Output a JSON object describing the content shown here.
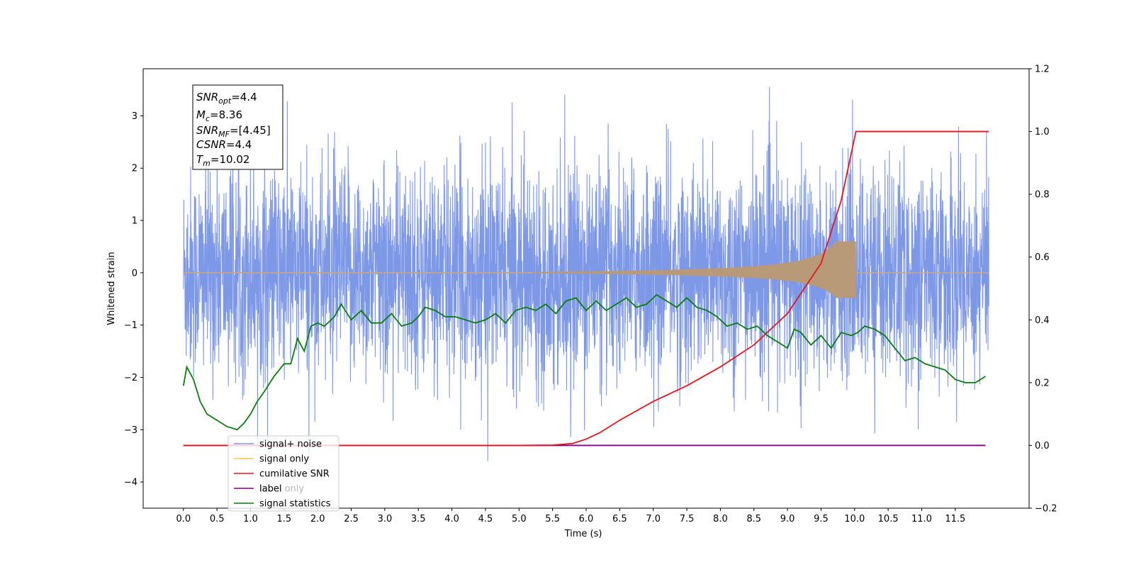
{
  "chart_data": {
    "type": "line",
    "xlabel": "Time (s)",
    "ylabel_left": "Whitened strain",
    "ylabel_right": "",
    "xlim": [
      -0.6,
      12.6
    ],
    "ylim_left": [
      -4.5,
      3.9
    ],
    "ylim_right": [
      -0.2,
      1.2
    ],
    "x_ticks": [
      "0.0",
      "0.5",
      "1.0",
      "1.5",
      "2.0",
      "2.5",
      "3.0",
      "3.5",
      "4.0",
      "4.5",
      "5.0",
      "5.5",
      "6.0",
      "6.5",
      "7.0",
      "7.5",
      "8.0",
      "8.5",
      "9.0",
      "9.5",
      "10.0",
      "10.5",
      "11.0",
      "11.5"
    ],
    "y_ticks_left": [
      "−4",
      "−3",
      "−2",
      "−1",
      "0",
      "1",
      "2",
      "3"
    ],
    "y_ticks_right": [
      "−0.2",
      "0.0",
      "0.2",
      "0.4",
      "0.6",
      "0.8",
      "1.0",
      "1.2"
    ],
    "grid": false,
    "legend_position": "lower-left",
    "annotation": {
      "snr_opt": "=4.4",
      "mc": "=8.36",
      "snr_mf": "=[4.45]",
      "csnr": "=4.4",
      "tm": "=10.02"
    },
    "series": [
      {
        "name": "signal+ noise",
        "axis": "left",
        "color": "#7b96e8",
        "style": "dense noise, approx. standard deviation 1.0, peaks to ±3.5",
        "x_range": [
          0.0,
          12.0
        ],
        "std": 1.0
      },
      {
        "name": "signal only",
        "axis": "left",
        "color": "#ffc04c",
        "style": "chirp, amplitude growing to 0.6 at 10.02 s then zero",
        "x_range": [
          0.0,
          10.02
        ],
        "peak_amplitude": 0.6
      },
      {
        "name": "cumilative SNR",
        "axis": "right",
        "color": "#e8141c",
        "x": [
          0.0,
          5.0,
          5.5,
          5.8,
          6.0,
          6.2,
          6.5,
          7.0,
          7.5,
          8.0,
          8.5,
          9.0,
          9.5,
          9.8,
          10.02,
          12.0
        ],
        "values": [
          0.0,
          0.0,
          0.001,
          0.006,
          0.02,
          0.04,
          0.08,
          0.14,
          0.19,
          0.25,
          0.32,
          0.42,
          0.58,
          0.78,
          1.0,
          1.0
        ]
      },
      {
        "name": "label",
        "axis": "right",
        "color": "#800080",
        "x": [
          0.0,
          11.95
        ],
        "values": [
          0.0,
          0.0
        ]
      },
      {
        "name": "label only",
        "axis": "right",
        "color": "#b7b7b7",
        "hidden": true
      },
      {
        "name": "signal statistics",
        "axis": "right",
        "color": "#0a7d0a",
        "x": [
          0.0,
          0.05,
          0.15,
          0.25,
          0.35,
          0.5,
          0.65,
          0.8,
          0.9,
          1.0,
          1.1,
          1.2,
          1.35,
          1.5,
          1.6,
          1.7,
          1.8,
          1.9,
          2.0,
          2.1,
          2.25,
          2.35,
          2.5,
          2.65,
          2.8,
          2.95,
          3.1,
          3.25,
          3.4,
          3.5,
          3.6,
          3.75,
          3.9,
          4.05,
          4.2,
          4.35,
          4.5,
          4.65,
          4.8,
          4.95,
          5.1,
          5.25,
          5.4,
          5.55,
          5.7,
          5.85,
          6.0,
          6.15,
          6.3,
          6.45,
          6.6,
          6.75,
          6.9,
          7.05,
          7.2,
          7.35,
          7.5,
          7.65,
          7.8,
          7.95,
          8.1,
          8.25,
          8.4,
          8.55,
          8.7,
          8.85,
          9.0,
          9.1,
          9.2,
          9.35,
          9.5,
          9.65,
          9.8,
          9.95,
          10.05,
          10.15,
          10.3,
          10.45,
          10.6,
          10.75,
          10.9,
          11.05,
          11.2,
          11.35,
          11.5,
          11.65,
          11.8,
          11.95
        ],
        "values": [
          0.19,
          0.25,
          0.21,
          0.14,
          0.1,
          0.08,
          0.06,
          0.05,
          0.07,
          0.1,
          0.14,
          0.17,
          0.22,
          0.26,
          0.26,
          0.34,
          0.3,
          0.38,
          0.39,
          0.38,
          0.41,
          0.45,
          0.4,
          0.43,
          0.39,
          0.39,
          0.42,
          0.38,
          0.39,
          0.41,
          0.44,
          0.43,
          0.41,
          0.41,
          0.4,
          0.39,
          0.4,
          0.42,
          0.39,
          0.43,
          0.44,
          0.43,
          0.45,
          0.42,
          0.46,
          0.47,
          0.43,
          0.46,
          0.43,
          0.45,
          0.47,
          0.44,
          0.45,
          0.48,
          0.46,
          0.44,
          0.47,
          0.44,
          0.43,
          0.41,
          0.38,
          0.39,
          0.37,
          0.38,
          0.35,
          0.33,
          0.31,
          0.37,
          0.36,
          0.32,
          0.35,
          0.31,
          0.36,
          0.35,
          0.36,
          0.38,
          0.37,
          0.35,
          0.31,
          0.27,
          0.28,
          0.26,
          0.25,
          0.24,
          0.21,
          0.2,
          0.2,
          0.22
        ]
      }
    ]
  }
}
